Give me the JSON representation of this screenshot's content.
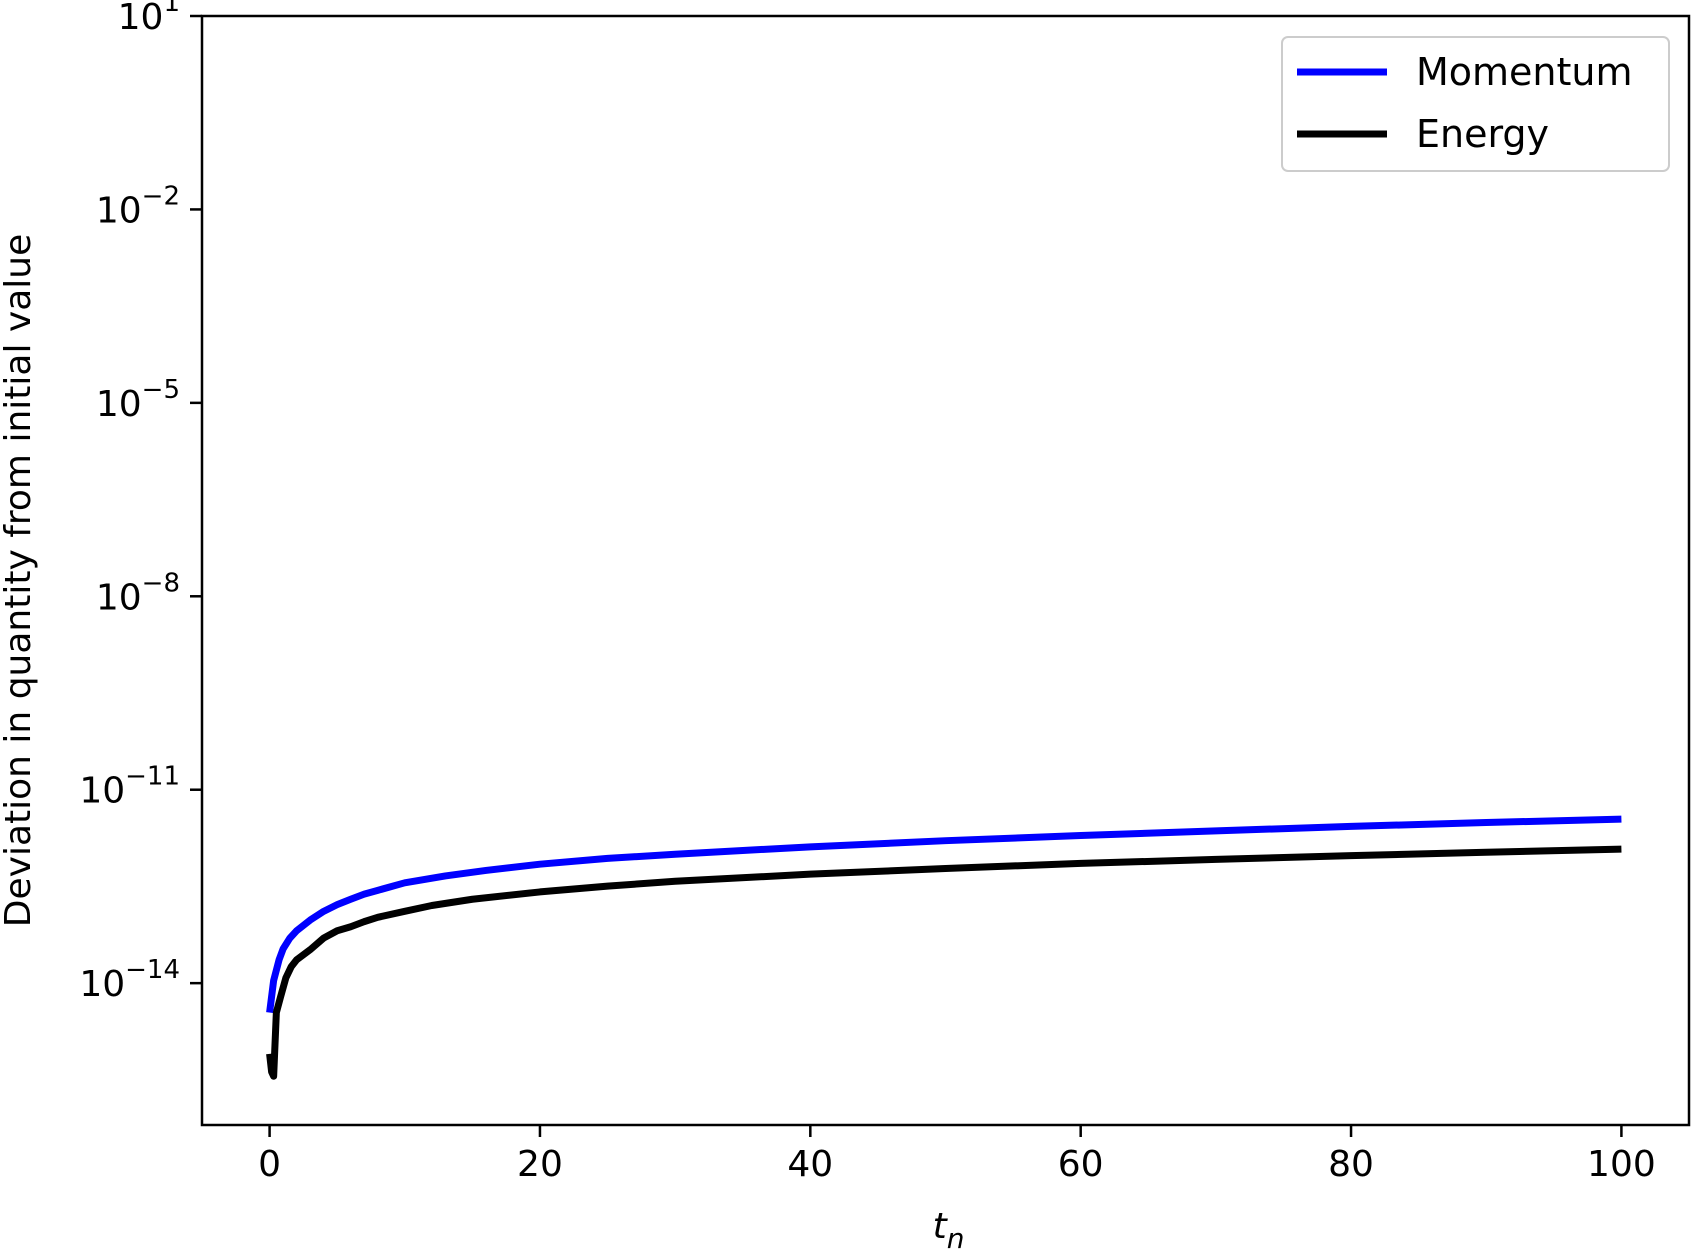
{
  "chart_data": {
    "type": "line",
    "title": "",
    "xlabel": {
      "base": "t",
      "subscript": "n"
    },
    "ylabel": "Deviation in quantity from initial value",
    "yscale": "log",
    "xlim": [
      -5,
      105
    ],
    "ylim_exp": [
      -16.2,
      1
    ],
    "xticks": [
      {
        "value": 0,
        "label": "0"
      },
      {
        "value": 20,
        "label": "20"
      },
      {
        "value": 40,
        "label": "40"
      },
      {
        "value": 60,
        "label": "60"
      },
      {
        "value": 80,
        "label": "80"
      },
      {
        "value": 100,
        "label": "100"
      }
    ],
    "yticks": [
      {
        "exp": 1,
        "base": "10",
        "sup": "1"
      },
      {
        "exp": -2,
        "base": "10",
        "sup": "−2"
      },
      {
        "exp": -5,
        "base": "10",
        "sup": "−5"
      },
      {
        "exp": -8,
        "base": "10",
        "sup": "−8"
      },
      {
        "exp": -11,
        "base": "10",
        "sup": "−11"
      },
      {
        "exp": -14,
        "base": "10",
        "sup": "−14"
      }
    ],
    "grid": false,
    "legend_position": "top-right",
    "series": [
      {
        "name": "Momentum",
        "color": "#0000ff",
        "x": [
          0,
          0.3,
          0.7,
          1.0,
          1.5,
          2,
          3,
          4,
          5,
          6,
          7,
          8,
          10,
          13,
          16,
          20,
          25,
          30,
          40,
          50,
          60,
          70,
          80,
          90,
          100
        ],
        "y": [
          3.5e-15,
          1.1e-14,
          2.3e-14,
          3.4e-14,
          5e-14,
          6.5e-14,
          9.5e-14,
          1.3e-13,
          1.65e-13,
          2e-13,
          2.4e-13,
          2.75e-13,
          3.6e-13,
          4.6e-13,
          5.6e-13,
          7e-13,
          8.6e-13,
          1e-12,
          1.3e-12,
          1.62e-12,
          1.95e-12,
          2.3e-12,
          2.7e-12,
          3.1e-12,
          3.5e-12
        ]
      },
      {
        "name": "Energy",
        "color": "#000000",
        "x": [
          0,
          0.15,
          0.3,
          0.5,
          0.8,
          1.2,
          1.6,
          2,
          3,
          4,
          5,
          6,
          7,
          8,
          10,
          12,
          15,
          20,
          25,
          30,
          40,
          50,
          60,
          70,
          80,
          90,
          100
        ],
        "y": [
          8e-16,
          4.2e-16,
          3.6e-16,
          3.5e-15,
          6e-15,
          1.2e-14,
          1.8e-14,
          2.3e-14,
          3.3e-14,
          5e-14,
          6.5e-14,
          7.5e-14,
          9e-14,
          1.05e-13,
          1.3e-13,
          1.6e-13,
          2e-13,
          2.6e-13,
          3.2e-13,
          3.8e-13,
          4.9e-13,
          6e-13,
          7.2e-13,
          8.3e-13,
          9.5e-13,
          1.07e-12,
          1.2e-12
        ]
      }
    ]
  }
}
